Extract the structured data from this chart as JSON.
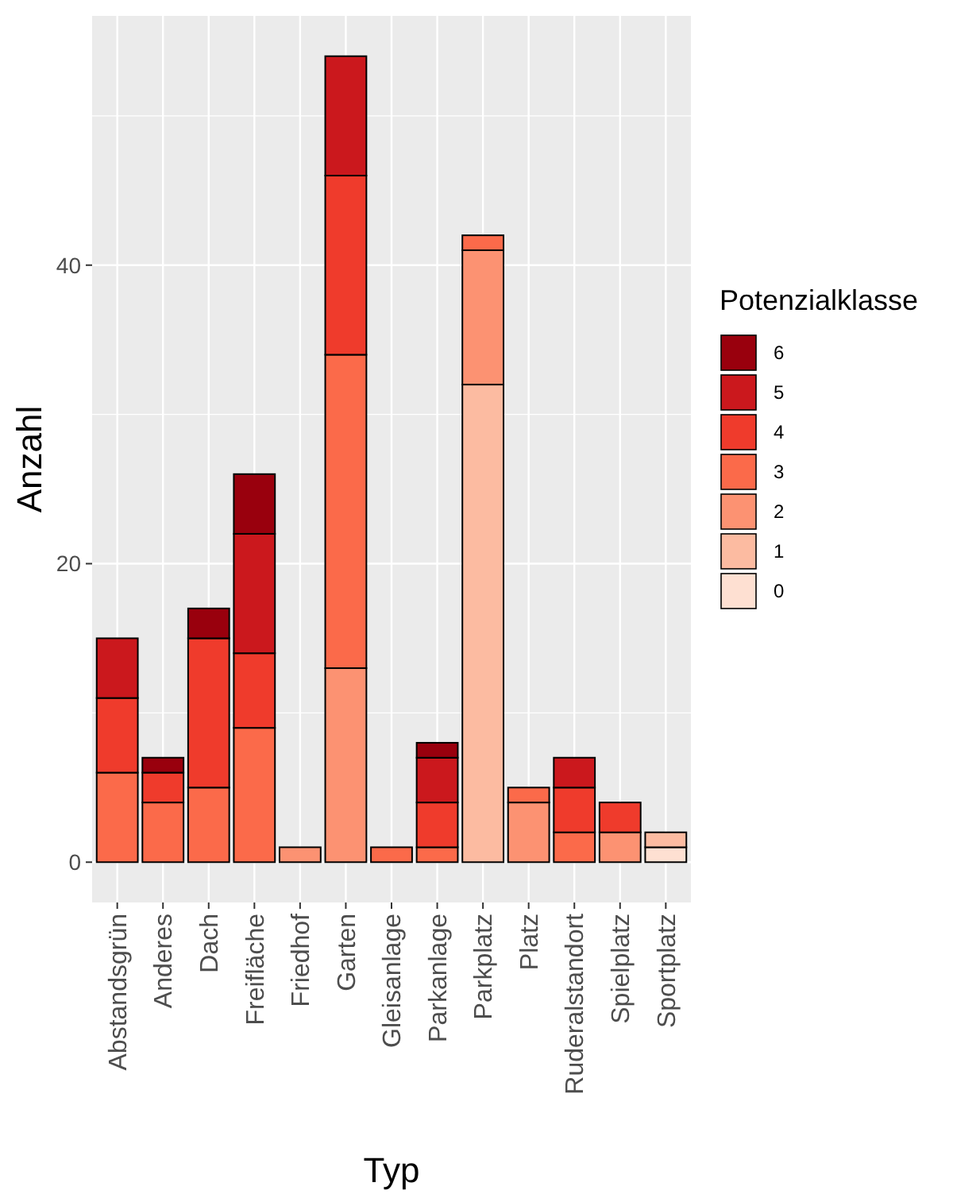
{
  "chart_data": {
    "type": "bar",
    "xlabel": "Typ",
    "ylabel": "Anzahl",
    "legend_title": "Potenzialklasse",
    "categories": [
      "Abstandsgrün",
      "Anderes",
      "Dach",
      "Freifläche",
      "Friedhof",
      "Garten",
      "Gleisanlage",
      "Parkanlage",
      "Parkplatz",
      "Platz",
      "Ruderalstandort",
      "Spielplatz",
      "Sportplatz"
    ],
    "stacked": true,
    "ylim": [
      -2.7,
      56.7
    ],
    "yticks": [
      0,
      20,
      40
    ],
    "grid": true,
    "legend": "right",
    "series": [
      {
        "name": "0",
        "color": "#fee0d2",
        "values": [
          null,
          null,
          null,
          null,
          null,
          null,
          null,
          null,
          null,
          null,
          null,
          null,
          1
        ]
      },
      {
        "name": "1",
        "color": "#fcbba1",
        "values": [
          null,
          null,
          null,
          null,
          null,
          null,
          null,
          null,
          32,
          null,
          null,
          null,
          1
        ]
      },
      {
        "name": "2",
        "color": "#fc9272",
        "values": [
          null,
          null,
          null,
          null,
          1,
          13,
          null,
          null,
          9,
          4,
          null,
          2,
          null
        ]
      },
      {
        "name": "3",
        "color": "#fb6a4a",
        "values": [
          6,
          4,
          5,
          9,
          null,
          21,
          1,
          1,
          1,
          1,
          2,
          null,
          null
        ]
      },
      {
        "name": "4",
        "color": "#ef3b2c",
        "values": [
          5,
          2,
          10,
          5,
          null,
          12,
          null,
          3,
          null,
          null,
          3,
          2,
          null
        ]
      },
      {
        "name": "5",
        "color": "#cb181d",
        "values": [
          4,
          null,
          null,
          8,
          null,
          8,
          null,
          3,
          null,
          null,
          2,
          null,
          null
        ]
      },
      {
        "name": "6",
        "color": "#99000d",
        "values": [
          null,
          1,
          2,
          4,
          null,
          null,
          null,
          1,
          null,
          null,
          null,
          null,
          null
        ]
      }
    ]
  }
}
